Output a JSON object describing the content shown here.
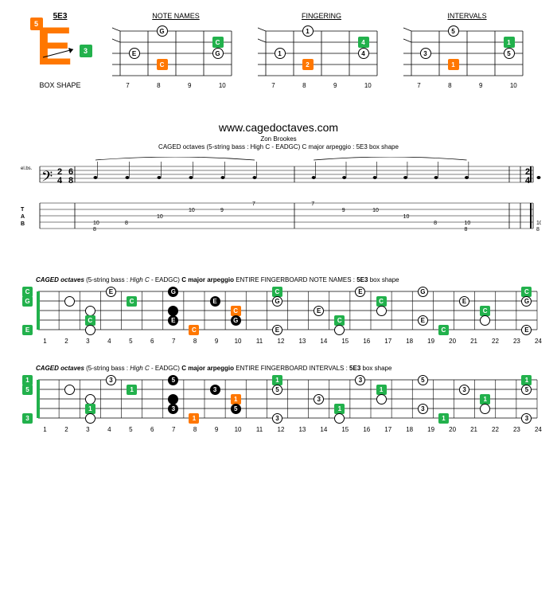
{
  "top": {
    "boxShape": {
      "label": "5E3",
      "letter": "E",
      "badge5": "5",
      "badge3": "3",
      "caption": "BOX SHAPE"
    },
    "diagrams": [
      {
        "label": "NOTE NAMES",
        "frets": [
          "7",
          "8",
          "9",
          "10"
        ],
        "dots": [
          {
            "string": 0,
            "fret": 1,
            "label": "G",
            "style": "white",
            "shape": "circle"
          },
          {
            "string": 1,
            "fret": 3,
            "label": "C",
            "style": "green",
            "shape": "square"
          },
          {
            "string": 2,
            "fret": 0,
            "label": "E",
            "style": "white",
            "shape": "circle"
          },
          {
            "string": 2,
            "fret": 3,
            "label": "G",
            "style": "white",
            "shape": "circle"
          },
          {
            "string": 3,
            "fret": 1,
            "label": "C",
            "style": "orange",
            "shape": "square"
          }
        ]
      },
      {
        "label": "FINGERING",
        "frets": [
          "7",
          "8",
          "9",
          "10"
        ],
        "dots": [
          {
            "string": 0,
            "fret": 1,
            "label": "1",
            "style": "white",
            "shape": "circle"
          },
          {
            "string": 1,
            "fret": 3,
            "label": "4",
            "style": "green",
            "shape": "square"
          },
          {
            "string": 2,
            "fret": 0,
            "label": "1",
            "style": "white",
            "shape": "circle"
          },
          {
            "string": 2,
            "fret": 3,
            "label": "4",
            "style": "white",
            "shape": "circle"
          },
          {
            "string": 3,
            "fret": 1,
            "label": "2",
            "style": "orange",
            "shape": "square"
          }
        ]
      },
      {
        "label": "INTERVALS",
        "frets": [
          "7",
          "8",
          "9",
          "10"
        ],
        "dots": [
          {
            "string": 0,
            "fret": 1,
            "label": "5",
            "style": "white",
            "shape": "circle"
          },
          {
            "string": 1,
            "fret": 3,
            "label": "1",
            "style": "green",
            "shape": "square"
          },
          {
            "string": 2,
            "fret": 0,
            "label": "3",
            "style": "white",
            "shape": "circle"
          },
          {
            "string": 2,
            "fret": 3,
            "label": "5",
            "style": "white",
            "shape": "circle"
          },
          {
            "string": 3,
            "fret": 1,
            "label": "1",
            "style": "orange",
            "shape": "square"
          }
        ]
      }
    ]
  },
  "notation": {
    "url": "www.cagedoctaves.com",
    "author": "Zon Brookes",
    "subtitle": "CAGED octaves (5-string bass : High C - EADGC) C major arpeggio : 5E3 box shape",
    "timesig1": "2/4",
    "timesig2": "6/8",
    "tabLabel": "TAB",
    "instLabel": "el.bs.",
    "measures": [
      [
        {
          "string": 3,
          "val": "10"
        },
        {
          "string": 4,
          "val": "8"
        },
        {
          "string": 3,
          "val": "8"
        },
        {
          "string": 2,
          "val": "10"
        },
        {
          "string": 1,
          "val": "10"
        },
        {
          "string": 1,
          "val": "9"
        },
        {
          "string": 0,
          "val": "7"
        }
      ],
      [
        {
          "string": 0,
          "val": "7"
        },
        {
          "string": 1,
          "val": "9"
        },
        {
          "string": 1,
          "val": "10"
        },
        {
          "string": 2,
          "val": "10"
        },
        {
          "string": 3,
          "val": "8"
        },
        {
          "string": 3,
          "val": "10"
        },
        {
          "string": 4,
          "val": "8"
        }
      ]
    ],
    "endchord": [
      {
        "string": 3,
        "val": "10"
      },
      {
        "string": 4,
        "val": "8"
      }
    ]
  },
  "fullBoards": [
    {
      "titleParts": {
        "p1": "CAGED octaves",
        "p2": " (5-string bass : ",
        "p3": "High C",
        "p4": " - EADGC) ",
        "p5": "C major arpeggio",
        "p6": " ENTIRE FINGERBOARD NOTE NAMES : ",
        "p7": "5E3",
        "p8": " box shape"
      },
      "openStrings": [
        "C",
        "G",
        "",
        "",
        "E"
      ],
      "dots": [
        {
          "s": 0,
          "f": 4,
          "l": "E",
          "st": "white",
          "sh": "c"
        },
        {
          "s": 0,
          "f": 7,
          "l": "G",
          "st": "black",
          "sh": "c"
        },
        {
          "s": 0,
          "f": 12,
          "l": "C",
          "st": "green",
          "sh": "s"
        },
        {
          "s": 0,
          "f": 16,
          "l": "E",
          "st": "white",
          "sh": "c"
        },
        {
          "s": 0,
          "f": 19,
          "l": "G",
          "st": "white",
          "sh": "c"
        },
        {
          "s": 0,
          "f": 24,
          "l": "C",
          "st": "green",
          "sh": "s"
        },
        {
          "s": 1,
          "f": 2,
          "l": "",
          "st": "white",
          "sh": "c"
        },
        {
          "s": 1,
          "f": 5,
          "l": "C",
          "st": "green",
          "sh": "s"
        },
        {
          "s": 1,
          "f": 9,
          "l": "E",
          "st": "black",
          "sh": "c"
        },
        {
          "s": 1,
          "f": 12,
          "l": "G",
          "st": "white",
          "sh": "c"
        },
        {
          "s": 1,
          "f": 17,
          "l": "C",
          "st": "green",
          "sh": "s"
        },
        {
          "s": 1,
          "f": 21,
          "l": "E",
          "st": "white",
          "sh": "c"
        },
        {
          "s": 1,
          "f": 24,
          "l": "G",
          "st": "white",
          "sh": "c"
        },
        {
          "s": 2,
          "f": 3,
          "l": "",
          "st": "white",
          "sh": "c"
        },
        {
          "s": 2,
          "f": 7,
          "l": "",
          "st": "black",
          "sh": "c"
        },
        {
          "s": 2,
          "f": 10,
          "l": "C",
          "st": "orange",
          "sh": "s"
        },
        {
          "s": 2,
          "f": 14,
          "l": "E",
          "st": "white",
          "sh": "c"
        },
        {
          "s": 2,
          "f": 17,
          "l": "",
          "st": "white",
          "sh": "c"
        },
        {
          "s": 2,
          "f": 22,
          "l": "C",
          "st": "green",
          "sh": "s"
        },
        {
          "s": 3,
          "f": 3,
          "l": "C",
          "st": "green",
          "sh": "s"
        },
        {
          "s": 3,
          "f": 7,
          "l": "E",
          "st": "black",
          "sh": "c"
        },
        {
          "s": 3,
          "f": 10,
          "l": "G",
          "st": "black",
          "sh": "c"
        },
        {
          "s": 3,
          "f": 15,
          "l": "C",
          "st": "green",
          "sh": "s"
        },
        {
          "s": 3,
          "f": 19,
          "l": "E",
          "st": "white",
          "sh": "c"
        },
        {
          "s": 3,
          "f": 22,
          "l": "",
          "st": "white",
          "sh": "c"
        },
        {
          "s": 4,
          "f": 3,
          "l": "",
          "st": "white",
          "sh": "c"
        },
        {
          "s": 4,
          "f": 8,
          "l": "C",
          "st": "orange",
          "sh": "s"
        },
        {
          "s": 4,
          "f": 12,
          "l": "E",
          "st": "white",
          "sh": "c"
        },
        {
          "s": 4,
          "f": 15,
          "l": "",
          "st": "white",
          "sh": "c"
        },
        {
          "s": 4,
          "f": 20,
          "l": "C",
          "st": "green",
          "sh": "s"
        },
        {
          "s": 4,
          "f": 24,
          "l": "E",
          "st": "white",
          "sh": "c"
        }
      ]
    },
    {
      "titleParts": {
        "p1": "CAGED octaves",
        "p2": " (5-string bass : ",
        "p3": "High C",
        "p4": " - EADGC) ",
        "p5": "C major arpeggio",
        "p6": " ENTIRE FINGERBOARD INTERVALS : ",
        "p7": "5E3",
        "p8": " box shape"
      },
      "openStrings": [
        "1",
        "5",
        "",
        "",
        "3"
      ],
      "dots": [
        {
          "s": 0,
          "f": 4,
          "l": "3",
          "st": "white",
          "sh": "c"
        },
        {
          "s": 0,
          "f": 7,
          "l": "5",
          "st": "black",
          "sh": "c"
        },
        {
          "s": 0,
          "f": 12,
          "l": "1",
          "st": "green",
          "sh": "s"
        },
        {
          "s": 0,
          "f": 16,
          "l": "3",
          "st": "white",
          "sh": "c"
        },
        {
          "s": 0,
          "f": 19,
          "l": "5",
          "st": "white",
          "sh": "c"
        },
        {
          "s": 0,
          "f": 24,
          "l": "1",
          "st": "green",
          "sh": "s"
        },
        {
          "s": 1,
          "f": 2,
          "l": "",
          "st": "white",
          "sh": "c"
        },
        {
          "s": 1,
          "f": 5,
          "l": "1",
          "st": "green",
          "sh": "s"
        },
        {
          "s": 1,
          "f": 9,
          "l": "3",
          "st": "black",
          "sh": "c"
        },
        {
          "s": 1,
          "f": 12,
          "l": "5",
          "st": "white",
          "sh": "c"
        },
        {
          "s": 1,
          "f": 17,
          "l": "1",
          "st": "green",
          "sh": "s"
        },
        {
          "s": 1,
          "f": 21,
          "l": "3",
          "st": "white",
          "sh": "c"
        },
        {
          "s": 1,
          "f": 24,
          "l": "5",
          "st": "white",
          "sh": "c"
        },
        {
          "s": 2,
          "f": 3,
          "l": "",
          "st": "white",
          "sh": "c"
        },
        {
          "s": 2,
          "f": 7,
          "l": "",
          "st": "black",
          "sh": "c"
        },
        {
          "s": 2,
          "f": 10,
          "l": "1",
          "st": "orange",
          "sh": "s"
        },
        {
          "s": 2,
          "f": 14,
          "l": "3",
          "st": "white",
          "sh": "c"
        },
        {
          "s": 2,
          "f": 17,
          "l": "",
          "st": "white",
          "sh": "c"
        },
        {
          "s": 2,
          "f": 22,
          "l": "1",
          "st": "green",
          "sh": "s"
        },
        {
          "s": 3,
          "f": 3,
          "l": "1",
          "st": "green",
          "sh": "s"
        },
        {
          "s": 3,
          "f": 7,
          "l": "3",
          "st": "black",
          "sh": "c"
        },
        {
          "s": 3,
          "f": 10,
          "l": "5",
          "st": "black",
          "sh": "c"
        },
        {
          "s": 3,
          "f": 15,
          "l": "1",
          "st": "green",
          "sh": "s"
        },
        {
          "s": 3,
          "f": 19,
          "l": "3",
          "st": "white",
          "sh": "c"
        },
        {
          "s": 3,
          "f": 22,
          "l": "",
          "st": "white",
          "sh": "c"
        },
        {
          "s": 4,
          "f": 3,
          "l": "",
          "st": "white",
          "sh": "c"
        },
        {
          "s": 4,
          "f": 8,
          "l": "1",
          "st": "orange",
          "sh": "s"
        },
        {
          "s": 4,
          "f": 12,
          "l": "3",
          "st": "white",
          "sh": "c"
        },
        {
          "s": 4,
          "f": 15,
          "l": "",
          "st": "white",
          "sh": "c"
        },
        {
          "s": 4,
          "f": 20,
          "l": "1",
          "st": "green",
          "sh": "s"
        },
        {
          "s": 4,
          "f": 24,
          "l": "3",
          "st": "white",
          "sh": "c"
        }
      ]
    }
  ],
  "fretNumbers": [
    "1",
    "2",
    "3",
    "4",
    "5",
    "6",
    "7",
    "8",
    "9",
    "10",
    "11",
    "12",
    "13",
    "14",
    "15",
    "16",
    "17",
    "18",
    "19",
    "20",
    "21",
    "22",
    "23",
    "24"
  ],
  "colors": {
    "green": "#22b14c",
    "orange": "#ff7700",
    "black": "#000000"
  }
}
